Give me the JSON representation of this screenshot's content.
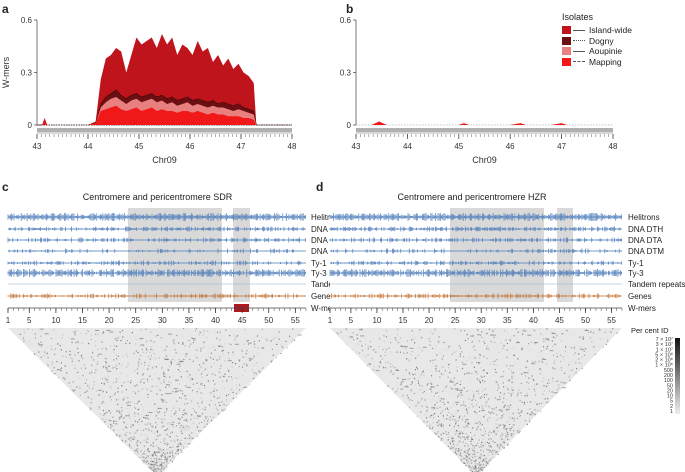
{
  "panels": {
    "a": {
      "letter": "a"
    },
    "b": {
      "letter": "b"
    },
    "c": {
      "letter": "c",
      "title": "Centromere and pericentromere SDR"
    },
    "d": {
      "letter": "d",
      "title": "Centromere and pericentromere HZR"
    }
  },
  "legend": {
    "title": "Isolates",
    "items": [
      {
        "label": "Island-wide",
        "color": "#c0141c"
      },
      {
        "label": "Dogny",
        "color": "#6b0f12"
      },
      {
        "label": "Aoupinie",
        "color": "#e88080"
      },
      {
        "label": "Mapping",
        "color": "#f01818"
      }
    ]
  },
  "tracks": {
    "labels": [
      "Helitrons",
      "DNA DTH",
      "DNA DTA",
      "DNA DTM",
      "Ty-1",
      "Ty-3",
      "Tandem repeats",
      "Genes",
      "W-mers"
    ],
    "colors": {
      "te": "#4a7ab8",
      "genes": "#c07030",
      "wmers": "#b01820",
      "shade": "#d9d9d9"
    },
    "ticks": [
      "1",
      "5",
      "10",
      "15",
      "20",
      "25",
      "30",
      "35",
      "40",
      "45",
      "50",
      "55"
    ]
  },
  "heatmap_legend": {
    "title": "Per cent ID",
    "ticks": [
      "7 × 10⁷",
      "3 × 10⁷",
      "1 × 10⁷",
      "5 × 10⁶",
      "2 × 10⁶",
      "1 × 10⁶",
      "500",
      "200",
      "100",
      "50",
      "20",
      "10",
      "5",
      "2",
      "1"
    ]
  },
  "chart_data": [
    {
      "type": "area",
      "panel": "a",
      "xlabel": "Chr09",
      "ylabel": "W-mers",
      "xlim": [
        43,
        48
      ],
      "ylim": [
        0,
        0.6
      ],
      "xticks": [
        "43",
        "44",
        "45",
        "46",
        "47",
        "48"
      ],
      "yticks": [
        "0",
        "0.3",
        "0.6"
      ],
      "x": [
        43.0,
        43.1,
        43.15,
        43.2,
        43.3,
        44.0,
        44.15,
        44.25,
        44.35,
        44.45,
        44.55,
        44.65,
        44.75,
        44.85,
        44.95,
        45.05,
        45.15,
        45.25,
        45.35,
        45.45,
        45.55,
        45.65,
        45.75,
        45.85,
        45.95,
        46.05,
        46.15,
        46.25,
        46.35,
        46.45,
        46.55,
        46.65,
        46.75,
        46.85,
        46.95,
        47.05,
        47.15,
        47.25,
        47.3,
        48.0
      ],
      "series": [
        {
          "name": "Island-wide",
          "values": [
            0,
            0,
            0.04,
            0,
            0,
            0,
            0.02,
            0.26,
            0.38,
            0.4,
            0.44,
            0.42,
            0.3,
            0.4,
            0.5,
            0.46,
            0.48,
            0.5,
            0.44,
            0.52,
            0.46,
            0.5,
            0.4,
            0.46,
            0.44,
            0.4,
            0.48,
            0.42,
            0.44,
            0.36,
            0.4,
            0.34,
            0.38,
            0.32,
            0.35,
            0.3,
            0.28,
            0.24,
            0,
            0
          ]
        },
        {
          "name": "Dogny",
          "values": [
            0,
            0,
            0.01,
            0,
            0,
            0,
            0.01,
            0.12,
            0.16,
            0.18,
            0.2,
            0.17,
            0.15,
            0.17,
            0.18,
            0.16,
            0.17,
            0.18,
            0.16,
            0.17,
            0.15,
            0.16,
            0.14,
            0.15,
            0.16,
            0.14,
            0.15,
            0.14,
            0.13,
            0.14,
            0.12,
            0.13,
            0.12,
            0.11,
            0.12,
            0.1,
            0.09,
            0.08,
            0,
            0
          ]
        },
        {
          "name": "Aoupinie",
          "values": [
            0,
            0,
            0.01,
            0,
            0,
            0,
            0.01,
            0.1,
            0.13,
            0.15,
            0.16,
            0.14,
            0.12,
            0.14,
            0.15,
            0.13,
            0.14,
            0.15,
            0.13,
            0.14,
            0.12,
            0.13,
            0.11,
            0.12,
            0.13,
            0.11,
            0.12,
            0.11,
            0.1,
            0.11,
            0.1,
            0.1,
            0.09,
            0.08,
            0.09,
            0.08,
            0.07,
            0.06,
            0,
            0
          ]
        },
        {
          "name": "Mapping",
          "values": [
            0,
            0,
            0.02,
            0,
            0,
            0,
            0.01,
            0.08,
            0.09,
            0.1,
            0.11,
            0.09,
            0.08,
            0.09,
            0.1,
            0.08,
            0.09,
            0.1,
            0.08,
            0.09,
            0.08,
            0.08,
            0.07,
            0.08,
            0.08,
            0.07,
            0.08,
            0.07,
            0.06,
            0.07,
            0.06,
            0.06,
            0.05,
            0.05,
            0.05,
            0.04,
            0.04,
            0.03,
            0,
            0
          ]
        }
      ]
    },
    {
      "type": "area",
      "panel": "b",
      "xlabel": "Chr09",
      "ylabel": "",
      "xlim": [
        43,
        48
      ],
      "ylim": [
        0,
        0.6
      ],
      "xticks": [
        "43",
        "44",
        "45",
        "46",
        "47",
        "48"
      ],
      "yticks": [
        "0",
        "0.3",
        "0.6"
      ],
      "x": [
        43.0,
        43.3,
        43.45,
        43.6,
        43.8,
        44.5,
        45.0,
        45.1,
        45.2,
        46.0,
        46.2,
        46.3,
        46.8,
        47.0,
        47.1,
        48.0
      ],
      "series": [
        {
          "name": "Island-wide",
          "values": [
            0,
            0,
            0.01,
            0,
            0,
            0,
            0,
            0.01,
            0,
            0,
            0.01,
            0,
            0,
            0.01,
            0,
            0
          ]
        },
        {
          "name": "Mapping",
          "values": [
            0,
            0,
            0.02,
            0,
            0,
            0,
            0,
            0.01,
            0,
            0,
            0.01,
            0,
            0,
            0.01,
            0,
            0
          ]
        }
      ]
    }
  ]
}
